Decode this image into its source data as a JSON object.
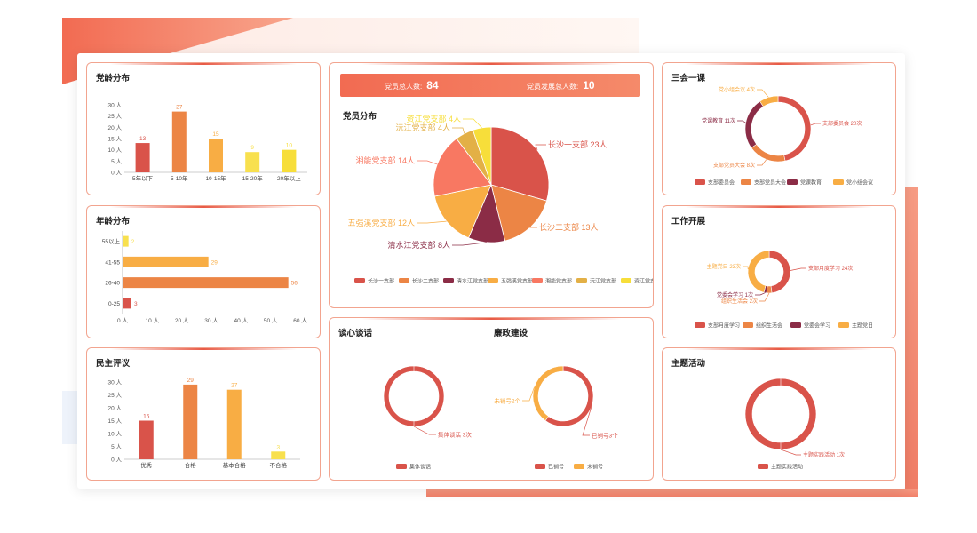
{
  "colors": {
    "red": "#d9534a",
    "orange": "#ec8545",
    "amber": "#f8ad44",
    "yellow": "#f8e04e",
    "plum": "#8b2c46",
    "salmon": "#f87862",
    "gold": "#e3b046",
    "lemon": "#f7de3a",
    "accent": "#f26b52"
  },
  "header": {
    "total_label": "党员总人数:",
    "total_value": "84",
    "dev_label": "党员发展总人数:",
    "dev_value": "10"
  },
  "cards": {
    "party_age": "党龄分布",
    "age": "年龄分布",
    "democratic": "民主评议",
    "members": "党员分布",
    "talk": "谈心谈话",
    "integrity": "廉政建设",
    "meetings": "三会一课",
    "work": "工作开展",
    "theme": "主题活动"
  },
  "chart_data": [
    {
      "id": "party_age",
      "type": "bar",
      "categories": [
        "5年以下",
        "5-10年",
        "10-15年",
        "15-20年",
        "20年以上"
      ],
      "values": [
        13,
        27,
        15,
        9,
        10
      ],
      "ylim": [
        0,
        30
      ],
      "yticks": [
        "0 人",
        "5 人",
        "10 人",
        "15 人",
        "20 人",
        "25 人",
        "30 人"
      ],
      "colors": [
        "red",
        "orange",
        "amber",
        "yellow",
        "lemon"
      ]
    },
    {
      "id": "age",
      "type": "bar",
      "orientation": "horizontal",
      "categories": [
        "0-25",
        "26-40",
        "41-55",
        "55以上"
      ],
      "values": [
        3,
        56,
        29,
        2
      ],
      "xlim": [
        0,
        60
      ],
      "xticks": [
        "0 人",
        "10 人",
        "20 人",
        "30 人",
        "40 人",
        "50 人",
        "60 人"
      ],
      "colors": [
        "red",
        "orange",
        "amber",
        "yellow"
      ]
    },
    {
      "id": "democratic",
      "type": "bar",
      "categories": [
        "优秀",
        "合格",
        "基本合格",
        "不合格"
      ],
      "values": [
        15,
        29,
        27,
        3
      ],
      "ylim": [
        0,
        30
      ],
      "yticks": [
        "0 人",
        "5 人",
        "10 人",
        "15 人",
        "20 人",
        "25 人",
        "30 人"
      ],
      "colors": [
        "red",
        "orange",
        "amber",
        "yellow"
      ]
    },
    {
      "id": "members",
      "type": "pie",
      "slices": [
        {
          "name": "长沙一支部",
          "label": "长沙一支部  23人",
          "value": 23,
          "color": "red"
        },
        {
          "name": "长沙二支部",
          "label": "长沙二支部 13人",
          "value": 13,
          "color": "orange"
        },
        {
          "name": "清水江党支部",
          "label": "清水江党支部 8人",
          "value": 8,
          "color": "plum"
        },
        {
          "name": "五强溪党支部",
          "label": "五强溪党支部  12人",
          "value": 12,
          "color": "amber"
        },
        {
          "name": "湘能党支部",
          "label": "湘能党支部  14人",
          "value": 14,
          "color": "salmon"
        },
        {
          "name": "沅江党支部",
          "label": "沅江党支部 4人",
          "value": 4,
          "color": "gold"
        },
        {
          "name": "资江党支部",
          "label": "资江党支部 4人",
          "value": 4,
          "color": "lemon"
        }
      ],
      "legend": [
        "长沙一支部",
        "长沙二支部",
        "清水江党支部",
        "五强溪党支部",
        "湘能党支部",
        "沅江党支部",
        "资江党支部"
      ]
    },
    {
      "id": "talk",
      "type": "pie",
      "donut": true,
      "slices": [
        {
          "name": "集体谈话",
          "label": "集体谈话 3次",
          "value": 3,
          "color": "red"
        }
      ],
      "legend": [
        "集体谈话"
      ]
    },
    {
      "id": "integrity",
      "type": "pie",
      "donut": true,
      "slices": [
        {
          "name": "已销号",
          "label": "已销号3个",
          "value": 3,
          "color": "red"
        },
        {
          "name": "未销号",
          "label": "未销号2个",
          "value": 2,
          "color": "amber"
        }
      ],
      "legend": [
        "已销号",
        "未销号"
      ]
    },
    {
      "id": "meetings",
      "type": "pie",
      "donut": true,
      "slices": [
        {
          "name": "支部委员会",
          "label": "支部委员会 20次",
          "value": 20,
          "color": "red"
        },
        {
          "name": "支部党员大会",
          "label": "支部党员大会 8次",
          "value": 8,
          "color": "orange"
        },
        {
          "name": "党课教育",
          "label": "党课教育 11次",
          "value": 11,
          "color": "plum"
        },
        {
          "name": "党小组会议",
          "label": "党小组会议 4次",
          "value": 4,
          "color": "amber"
        }
      ],
      "legend": [
        "支部委员会",
        "支部党员大会",
        "党课教育",
        "党小组会议"
      ]
    },
    {
      "id": "work",
      "type": "pie",
      "donut": true,
      "slices": [
        {
          "name": "支部月度学习",
          "label": "支部月度学习 24次",
          "value": 24,
          "color": "red"
        },
        {
          "name": "组织生活会",
          "label": "组织生活会 2次",
          "value": 2,
          "color": "orange"
        },
        {
          "name": "党委会学习",
          "label": "党委会学习 1次",
          "value": 1,
          "color": "plum"
        },
        {
          "name": "主题党日",
          "label": "主题党日 23次",
          "value": 23,
          "color": "amber"
        }
      ],
      "legend": [
        "支部月度学习",
        "组织生活会",
        "党委会学习",
        "主题党日"
      ]
    },
    {
      "id": "theme",
      "type": "pie",
      "donut": true,
      "slices": [
        {
          "name": "主题实践活动",
          "label": "主题实践活动 1次",
          "value": 1,
          "color": "red"
        }
      ],
      "legend": [
        "主题实践活动"
      ]
    }
  ]
}
